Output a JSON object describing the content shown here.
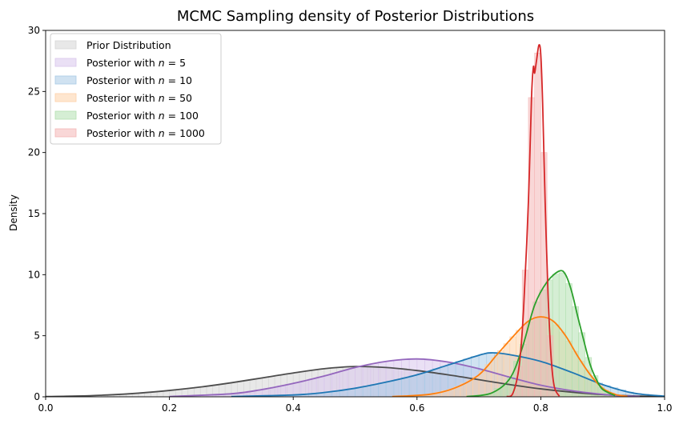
{
  "chart_data": {
    "type": "area",
    "title": "MCMC Sampling density of Posterior Distributions",
    "xlabel": "",
    "ylabel": "Density",
    "xlim": [
      0.0,
      1.0
    ],
    "ylim": [
      0,
      30
    ],
    "xticks": [
      "0.0",
      "0.2",
      "0.4",
      "0.6",
      "0.8",
      "1.0"
    ],
    "yticks": [
      "0",
      "5",
      "10",
      "15",
      "20",
      "25",
      "30"
    ],
    "grid": false,
    "legend_position": "top-left",
    "series": [
      {
        "name": "Prior Distribution",
        "legend_prefix": "Prior Distribution",
        "legend_math": "",
        "color": "#4d4d4d",
        "hist_color": "#d6d6d6",
        "kde": [
          [
            0.0,
            0.02
          ],
          [
            0.05,
            0.06
          ],
          [
            0.1,
            0.15
          ],
          [
            0.15,
            0.3
          ],
          [
            0.2,
            0.52
          ],
          [
            0.25,
            0.8
          ],
          [
            0.3,
            1.15
          ],
          [
            0.35,
            1.55
          ],
          [
            0.4,
            1.95
          ],
          [
            0.45,
            2.3
          ],
          [
            0.5,
            2.48
          ],
          [
            0.55,
            2.4
          ],
          [
            0.6,
            2.15
          ],
          [
            0.65,
            1.8
          ],
          [
            0.7,
            1.4
          ],
          [
            0.75,
            1.0
          ],
          [
            0.8,
            0.65
          ],
          [
            0.85,
            0.38
          ],
          [
            0.9,
            0.18
          ],
          [
            0.95,
            0.07
          ],
          [
            1.0,
            0.03
          ]
        ]
      },
      {
        "name": "Posterior with n = 5",
        "legend_prefix": "Posterior with ",
        "legend_math": "n = 5",
        "color": "#9467bd",
        "hist_color": "#d9c7ec",
        "kde": [
          [
            0.2,
            0.02
          ],
          [
            0.3,
            0.25
          ],
          [
            0.35,
            0.6
          ],
          [
            0.4,
            1.1
          ],
          [
            0.45,
            1.7
          ],
          [
            0.5,
            2.4
          ],
          [
            0.55,
            2.9
          ],
          [
            0.6,
            3.1
          ],
          [
            0.65,
            2.85
          ],
          [
            0.7,
            2.3
          ],
          [
            0.75,
            1.6
          ],
          [
            0.8,
            0.95
          ],
          [
            0.85,
            0.5
          ],
          [
            0.9,
            0.2
          ],
          [
            0.93,
            0.08
          ],
          [
            0.96,
            0.02
          ]
        ]
      },
      {
        "name": "Posterior with n = 10",
        "legend_prefix": "Posterior with ",
        "legend_math": "n = 10",
        "color": "#1f77b4",
        "hist_color": "#a9cbe6",
        "kde": [
          [
            0.3,
            0.02
          ],
          [
            0.4,
            0.15
          ],
          [
            0.45,
            0.35
          ],
          [
            0.5,
            0.7
          ],
          [
            0.55,
            1.2
          ],
          [
            0.6,
            1.8
          ],
          [
            0.65,
            2.6
          ],
          [
            0.7,
            3.4
          ],
          [
            0.72,
            3.6
          ],
          [
            0.75,
            3.45
          ],
          [
            0.8,
            2.9
          ],
          [
            0.85,
            2.0
          ],
          [
            0.9,
            1.0
          ],
          [
            0.95,
            0.3
          ],
          [
            1.0,
            0.05
          ]
        ]
      },
      {
        "name": "Posterior with n = 50",
        "legend_prefix": "Posterior with ",
        "legend_math": "n = 50",
        "color": "#ff7f0e",
        "hist_color": "#fed1a8",
        "kde": [
          [
            0.56,
            0.02
          ],
          [
            0.62,
            0.2
          ],
          [
            0.66,
            0.7
          ],
          [
            0.7,
            1.8
          ],
          [
            0.73,
            3.5
          ],
          [
            0.76,
            5.2
          ],
          [
            0.78,
            6.2
          ],
          [
            0.8,
            6.55
          ],
          [
            0.82,
            6.2
          ],
          [
            0.84,
            5.0
          ],
          [
            0.86,
            3.3
          ],
          [
            0.88,
            1.8
          ],
          [
            0.9,
            0.7
          ],
          [
            0.92,
            0.2
          ],
          [
            0.94,
            0.03
          ]
        ]
      },
      {
        "name": "Posterior with n = 100",
        "legend_prefix": "Posterior with ",
        "legend_math": "n = 100",
        "color": "#2ca02c",
        "hist_color": "#b3e0b0",
        "kde": [
          [
            0.68,
            0.02
          ],
          [
            0.72,
            0.3
          ],
          [
            0.75,
            1.5
          ],
          [
            0.77,
            4.0
          ],
          [
            0.79,
            7.5
          ],
          [
            0.81,
            9.4
          ],
          [
            0.83,
            10.3
          ],
          [
            0.84,
            10.0
          ],
          [
            0.85,
            8.6
          ],
          [
            0.86,
            6.5
          ],
          [
            0.87,
            4.5
          ],
          [
            0.88,
            2.6
          ],
          [
            0.89,
            1.4
          ],
          [
            0.9,
            0.6
          ],
          [
            0.92,
            0.1
          ]
        ]
      },
      {
        "name": "Posterior with n = 1000",
        "legend_prefix": "Posterior with ",
        "legend_math": "n = 1000",
        "color": "#d62728",
        "hist_color": "#f4b6b6",
        "kde": [
          [
            0.745,
            0.02
          ],
          [
            0.755,
            0.3
          ],
          [
            0.765,
            2.5
          ],
          [
            0.772,
            7.0
          ],
          [
            0.78,
            16.0
          ],
          [
            0.785,
            24.5
          ],
          [
            0.788,
            27.0
          ],
          [
            0.79,
            26.5
          ],
          [
            0.793,
            27.5
          ],
          [
            0.797,
            28.8
          ],
          [
            0.8,
            28.0
          ],
          [
            0.803,
            24.0
          ],
          [
            0.807,
            16.0
          ],
          [
            0.812,
            8.0
          ],
          [
            0.817,
            3.0
          ],
          [
            0.822,
            0.8
          ],
          [
            0.83,
            0.05
          ]
        ]
      }
    ]
  }
}
